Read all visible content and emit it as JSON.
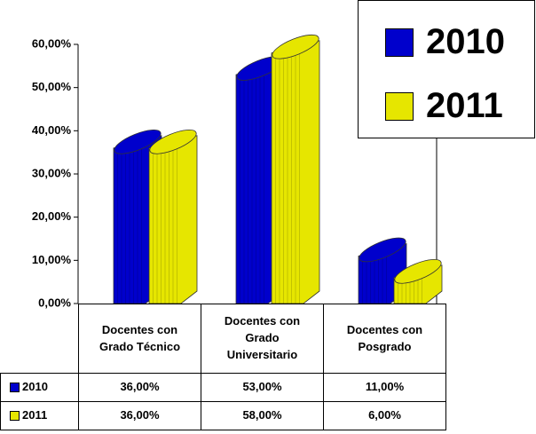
{
  "chart_data": {
    "type": "bar",
    "categories": [
      "Docentes con\nGrado Técnico",
      "Docentes con\nGrado\nUniversitario",
      "Docentes con\nPosgrado"
    ],
    "series": [
      {
        "name": "2010",
        "color": "#0000cc",
        "values": [
          36,
          53,
          11
        ],
        "value_labels": [
          "36,00%",
          "53,00%",
          "11,00%"
        ]
      },
      {
        "name": "2011",
        "color": "#e6e600",
        "values": [
          36,
          58,
          6
        ],
        "value_labels": [
          "36,00%",
          "58,00%",
          "6,00%"
        ]
      }
    ],
    "ylim": [
      0,
      60
    ],
    "yticks": [
      {
        "value": 0,
        "label": "0,00%"
      },
      {
        "value": 10,
        "label": "10,00%"
      },
      {
        "value": 20,
        "label": "20,00%"
      },
      {
        "value": 30,
        "label": "30,00%"
      },
      {
        "value": 40,
        "label": "40,00%"
      },
      {
        "value": 50,
        "label": "50,00%"
      },
      {
        "value": 60,
        "label": "60,00%"
      }
    ]
  }
}
